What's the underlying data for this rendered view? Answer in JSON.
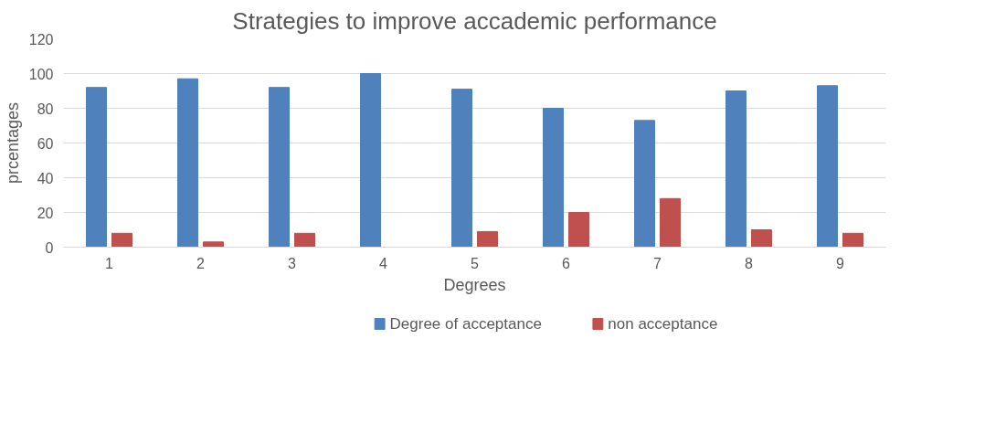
{
  "chart_data": {
    "type": "bar",
    "title": "Strategies to improve accademic performance",
    "xlabel": "Degrees",
    "ylabel": "prcentages",
    "categories": [
      "1",
      "2",
      "3",
      "4",
      "5",
      "6",
      "7",
      "8",
      "9"
    ],
    "series": [
      {
        "name": "Degree of acceptance",
        "color": "#4f81bd",
        "values": [
          92,
          97,
          92,
          100,
          91,
          80,
          73,
          90,
          93
        ]
      },
      {
        "name": "non acceptance",
        "color": "#c0504d",
        "values": [
          8,
          3,
          8,
          0,
          9,
          20,
          28,
          10,
          8
        ]
      }
    ],
    "ylim": [
      0,
      120
    ],
    "yticks": [
      0,
      20,
      40,
      60,
      80,
      100,
      120
    ],
    "grid": "y",
    "legend": "bottom"
  }
}
